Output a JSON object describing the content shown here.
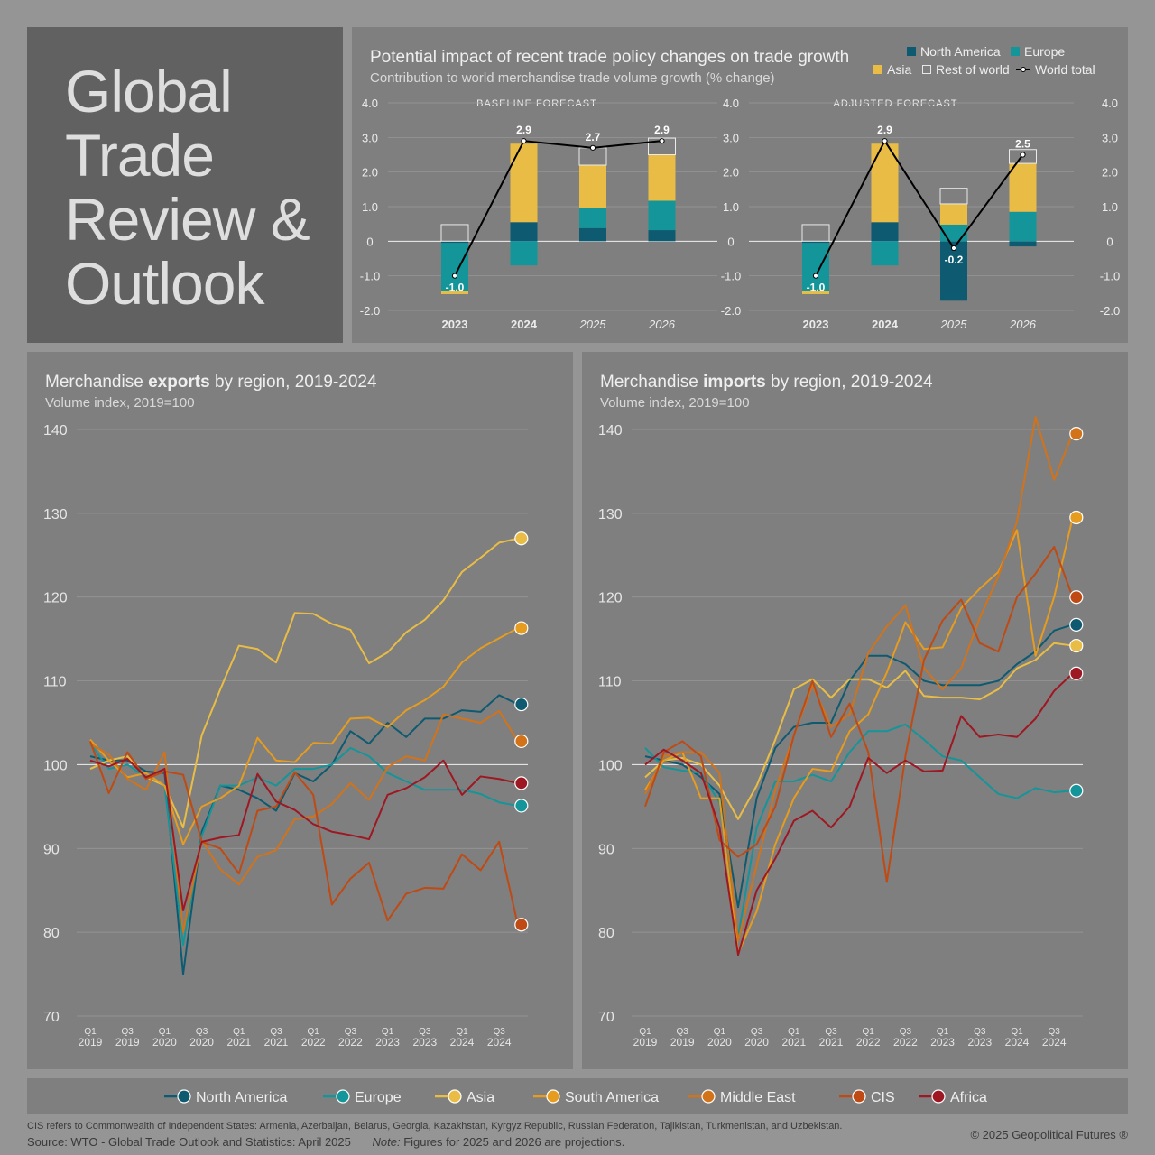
{
  "title": {
    "line1": "Global",
    "line2": "Trade",
    "line3": "Review &",
    "line4": "Outlook"
  },
  "forecast": {
    "title": "Potential impact of recent trade policy changes on trade growth",
    "subtitle": "Contribution to world merchandise trade volume growth (% change)",
    "legend": [
      {
        "name": "North America",
        "color": "#0e5a70",
        "kind": "box"
      },
      {
        "name": "Europe",
        "color": "#13959a",
        "kind": "box"
      },
      {
        "name": "Asia",
        "color": "#e9bd45",
        "kind": "box"
      },
      {
        "name": "Rest of world",
        "color": "none",
        "kind": "outline"
      },
      {
        "name": "World total",
        "color": "#000000",
        "kind": "line"
      }
    ]
  },
  "chart_data": [
    {
      "id": "baseline",
      "type": "bar",
      "stacked": true,
      "title": "BASELINE FORECAST",
      "categories": [
        "2023",
        "2024",
        "2025",
        "2026"
      ],
      "projection_categories": [
        "2025",
        "2026"
      ],
      "ylim": [
        -2.0,
        4.0
      ],
      "yticks": [
        4.0,
        3.0,
        2.0,
        1.0,
        0,
        -1.0,
        -2.0
      ],
      "ytick_labels": [
        "4.0",
        "3.0",
        "2.0",
        "1.0",
        "0",
        "-1.0",
        "-2.0"
      ],
      "series": [
        {
          "name": "North America",
          "values": [
            -0.05,
            0.55,
            0.38,
            0.32
          ]
        },
        {
          "name": "Europe",
          "values": [
            -1.4,
            -0.7,
            0.58,
            0.85
          ]
        },
        {
          "name": "Asia",
          "values": [
            -0.08,
            2.27,
            1.24,
            1.33
          ]
        },
        {
          "name": "Rest of world",
          "values": [
            0.48,
            0.0,
            0.5,
            0.48
          ]
        }
      ],
      "world_total": [
        -1.0,
        2.9,
        2.7,
        2.9
      ],
      "total_labels": [
        "-1.0",
        "2.9",
        "2.7",
        "2.9"
      ]
    },
    {
      "id": "adjusted",
      "type": "bar",
      "stacked": true,
      "title": "ADJUSTED FORECAST",
      "categories": [
        "2023",
        "2024",
        "2025",
        "2026"
      ],
      "projection_categories": [
        "2025",
        "2026"
      ],
      "ylim": [
        -2.0,
        4.0
      ],
      "yticks": [
        4.0,
        3.0,
        2.0,
        1.0,
        0,
        -1.0,
        -2.0
      ],
      "ytick_labels": [
        "4.0",
        "3.0",
        "2.0",
        "1.0",
        "0",
        "-1.0",
        "-2.0"
      ],
      "series": [
        {
          "name": "North America",
          "values": [
            -0.05,
            0.55,
            -1.72,
            -0.15
          ]
        },
        {
          "name": "Europe",
          "values": [
            -1.4,
            -0.7,
            0.48,
            0.85
          ]
        },
        {
          "name": "Asia",
          "values": [
            -0.08,
            2.27,
            0.6,
            1.4
          ]
        },
        {
          "name": "Rest of world",
          "values": [
            0.48,
            0.0,
            0.45,
            0.4
          ]
        }
      ],
      "world_total": [
        -1.0,
        2.9,
        -0.2,
        2.5
      ],
      "total_labels": [
        "-1.0",
        "2.9",
        "-0.2",
        "2.5"
      ]
    },
    {
      "id": "exports",
      "type": "line",
      "title_prefix": "Merchandise ",
      "title_bold": "exports",
      "title_suffix": " by region, 2019-2024",
      "subtitle": "Volume index, 2019=100",
      "ylim": [
        70,
        140
      ],
      "yticks": [
        70,
        80,
        90,
        100,
        110,
        120,
        130,
        140
      ],
      "xticks": [
        {
          "q": "Q1",
          "y": "2019"
        },
        {
          "q": "Q3",
          "y": "2019"
        },
        {
          "q": "Q1",
          "y": "2020"
        },
        {
          "q": "Q3",
          "y": "2020"
        },
        {
          "q": "Q1",
          "y": "2021"
        },
        {
          "q": "Q3",
          "y": "2021"
        },
        {
          "q": "Q1",
          "y": "2022"
        },
        {
          "q": "Q3",
          "y": "2022"
        },
        {
          "q": "Q1",
          "y": "2023"
        },
        {
          "q": "Q3",
          "y": "2023"
        },
        {
          "q": "Q1",
          "y": "2024"
        },
        {
          "q": "Q3",
          "y": "2024"
        }
      ],
      "series": [
        {
          "name": "North America",
          "values": [
            101,
            100.5,
            100.5,
            99.2,
            99,
            75,
            92,
            97.5,
            97,
            96,
            94.5,
            99,
            98,
            100,
            104,
            102.5,
            105,
            103.3,
            105.5,
            105.5,
            106.5,
            106.3,
            108.3,
            107.2
          ]
        },
        {
          "name": "Europe",
          "values": [
            102.5,
            99.5,
            100,
            98.5,
            97.5,
            78.5,
            91.5,
            97.5,
            97.5,
            98.5,
            97.5,
            99.5,
            99.5,
            100,
            102,
            101,
            99,
            98,
            97,
            97,
            97,
            96.5,
            95.5,
            95.1
          ]
        },
        {
          "name": "Asia",
          "values": [
            99.5,
            100.5,
            101,
            98.5,
            97.5,
            92.5,
            103.5,
            109,
            114.2,
            113.8,
            112.2,
            118.1,
            118,
            116.8,
            116.1,
            112.1,
            113.4,
            115.8,
            117.3,
            119.6,
            123.0,
            124.7,
            126.5,
            127.0
          ]
        },
        {
          "name": "South America",
          "values": [
            103,
            100.5,
            98.5,
            99,
            97.5,
            90.5,
            95,
            96,
            97.5,
            103.2,
            100.5,
            100.3,
            102.6,
            102.5,
            105.5,
            105.6,
            104.5,
            106.5,
            107.7,
            109.3,
            112.2,
            113.9,
            115.1,
            116.3
          ]
        },
        {
          "name": "Middle East",
          "values": [
            102.5,
            101.2,
            98.3,
            97,
            101.5,
            80,
            91,
            87.5,
            85.7,
            89,
            89.8,
            93.5,
            93.8,
            95.3,
            97.8,
            95.8,
            99.7,
            101.0,
            100.5,
            106.0,
            105.5,
            105.0,
            106.4,
            102.8
          ]
        },
        {
          "name": "CIS",
          "values": [
            102.8,
            96.6,
            101.5,
            98.3,
            99.2,
            98.8,
            90.8,
            90.0,
            87.0,
            94.5,
            95.0,
            99.1,
            96.4,
            83.3,
            86.4,
            88.3,
            81.4,
            84.6,
            85.3,
            85.2,
            89.3,
            87.4,
            90.8,
            80.9
          ]
        },
        {
          "name": "Africa",
          "values": [
            100.5,
            99.8,
            100.7,
            98.5,
            99.5,
            82.6,
            90.8,
            91.3,
            91.6,
            98.9,
            95.6,
            94.6,
            92.9,
            92.0,
            91.6,
            91.1,
            96.4,
            97.2,
            98.5,
            100.5,
            96.4,
            98.6,
            98.3,
            97.8
          ]
        }
      ]
    },
    {
      "id": "imports",
      "type": "line",
      "title_prefix": "Merchandise ",
      "title_bold": "imports",
      "title_suffix": " by region, 2019-2024",
      "subtitle": "Volume index, 2019=100",
      "ylim": [
        70,
        140
      ],
      "yticks": [
        70,
        80,
        90,
        100,
        110,
        120,
        130,
        140
      ],
      "xticks": [
        {
          "q": "Q1",
          "y": "2019"
        },
        {
          "q": "Q3",
          "y": "2019"
        },
        {
          "q": "Q1",
          "y": "2020"
        },
        {
          "q": "Q3",
          "y": "2020"
        },
        {
          "q": "Q1",
          "y": "2021"
        },
        {
          "q": "Q3",
          "y": "2021"
        },
        {
          "q": "Q1",
          "y": "2022"
        },
        {
          "q": "Q3",
          "y": "2022"
        },
        {
          "q": "Q1",
          "y": "2023"
        },
        {
          "q": "Q3",
          "y": "2023"
        },
        {
          "q": "Q1",
          "y": "2024"
        },
        {
          "q": "Q3",
          "y": "2024"
        }
      ],
      "series": [
        {
          "name": "North America",
          "values": [
            101,
            100.5,
            100,
            98.5,
            96.5,
            83,
            96,
            102,
            104.5,
            105,
            105,
            110,
            113,
            113,
            112,
            110,
            109.5,
            109.5,
            109.5,
            110,
            112,
            113.5,
            116,
            116.7
          ]
        },
        {
          "name": "Europe",
          "values": [
            102,
            99.7,
            99.3,
            99,
            95.5,
            79.5,
            92.5,
            98,
            98,
            98.8,
            98,
            101.5,
            104,
            104,
            104.8,
            103,
            101,
            100.5,
            98.5,
            96.5,
            96,
            97.2,
            96.7,
            96.9
          ]
        },
        {
          "name": "Asia",
          "values": [
            98.5,
            100.5,
            100.8,
            100,
            97.5,
            93.5,
            97.5,
            103,
            109,
            110.2,
            108,
            110.2,
            110.2,
            109.2,
            111.2,
            108.2,
            108,
            108,
            107.8,
            109,
            111.5,
            112.5,
            114.5,
            114.2
          ]
        },
        {
          "name": "South America",
          "values": [
            97,
            100.5,
            101.5,
            96,
            96,
            77.5,
            82.5,
            90.5,
            96,
            99.5,
            99.2,
            104,
            106,
            111,
            117,
            113.8,
            114,
            118.7,
            121,
            123,
            128,
            113,
            120,
            129.5
          ]
        },
        {
          "name": "Middle East",
          "values": [
            96.5,
            101,
            101.5,
            101.5,
            99,
            79,
            88,
            97,
            103.5,
            109.5,
            104.5,
            106,
            113.3,
            116.5,
            119,
            111.5,
            109,
            111.5,
            117.5,
            122.5,
            129,
            141.5,
            134,
            139.5
          ]
        },
        {
          "name": "CIS",
          "values": [
            95,
            101.5,
            102.8,
            101,
            91,
            89,
            90.5,
            95,
            103.5,
            110,
            103.3,
            107.3,
            101.5,
            86,
            101,
            112.5,
            117.2,
            119.7,
            114.5,
            113.5,
            120,
            122.8,
            126,
            120
          ]
        },
        {
          "name": "Africa",
          "values": [
            100,
            101.8,
            100.5,
            99,
            92.5,
            77.3,
            85,
            88.8,
            93.3,
            94.5,
            92.5,
            95,
            100.8,
            99,
            100.5,
            99.2,
            99.3,
            105.8,
            103.3,
            103.6,
            103.3,
            105.5,
            108.8,
            110.9
          ]
        }
      ]
    }
  ],
  "regions": [
    {
      "name": "North America",
      "color": "#0e5a70"
    },
    {
      "name": "Europe",
      "color": "#13959a"
    },
    {
      "name": "Asia",
      "color": "#e9bd45"
    },
    {
      "name": "South America",
      "color": "#e69c1e"
    },
    {
      "name": "Middle East",
      "color": "#d2731a"
    },
    {
      "name": "CIS",
      "color": "#bf4a13"
    },
    {
      "name": "Africa",
      "color": "#9e1823"
    }
  ],
  "footer": {
    "cis_note": "CIS refers to Commonwealth of Independent States: Armenia, Azerbaijan, Belarus, Georgia, Kazakhstan, Kyrgyz Republic, Russian Federation, Tajikistan, Turkmenistan, and Uzbekistan.",
    "source": "Source: WTO - Global Trade Outlook and Statistics: April 2025",
    "note_label": "Note:",
    "note_text": " Figures for 2025 and 2026 are projections.",
    "copyright": "© 2025 Geopolitical Futures ®"
  }
}
